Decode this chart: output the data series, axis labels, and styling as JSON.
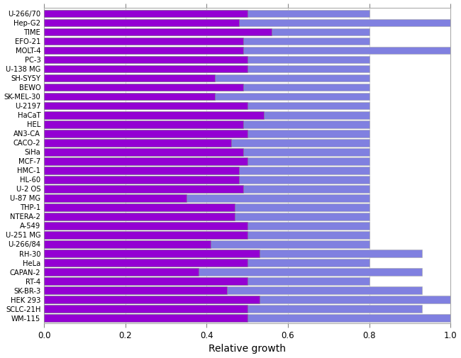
{
  "cell_lines": [
    "U-266/70",
    "Hep-G2",
    "TIME",
    "EFO-21",
    "MOLT-4",
    "PC-3",
    "U-138 MG",
    "SH-SY5Y",
    "BEWO",
    "SK-MEL-30",
    "U-2197",
    "HaCaT",
    "HEL",
    "AN3-CA",
    "CACO-2",
    "SiHa",
    "MCF-7",
    "HMC-1",
    "HL-60",
    "U-2 OS",
    "U-87 MG",
    "THP-1",
    "NTERA-2",
    "A-549",
    "U-251 MG",
    "U-266/84",
    "RH-30",
    "HeLa",
    "CAPAN-2",
    "RT-4",
    "SK-BR-3",
    "HEK 293",
    "SCLC-21H",
    "WM-115"
  ],
  "purple_values": [
    0.5,
    0.48,
    0.56,
    0.49,
    0.49,
    0.5,
    0.5,
    0.42,
    0.49,
    0.42,
    0.5,
    0.54,
    0.49,
    0.5,
    0.46,
    0.49,
    0.5,
    0.48,
    0.48,
    0.49,
    0.35,
    0.47,
    0.47,
    0.5,
    0.5,
    0.41,
    0.53,
    0.5,
    0.38,
    0.5,
    0.45,
    0.53,
    0.5,
    0.5
  ],
  "blue_values": [
    0.8,
    1.0,
    0.8,
    0.8,
    1.0,
    0.8,
    0.8,
    0.8,
    0.8,
    0.8,
    0.8,
    0.8,
    0.8,
    0.8,
    0.8,
    0.8,
    0.8,
    0.8,
    0.8,
    0.8,
    0.8,
    0.8,
    0.8,
    0.8,
    0.8,
    0.8,
    0.93,
    0.8,
    0.93,
    0.8,
    0.93,
    1.0,
    0.93,
    1.0
  ],
  "purple_color": "#9400D3",
  "blue_color": "#8080E0",
  "plot_bg": "#ffffff",
  "figure_bg": "#ffffff",
  "xlabel": "Relative growth",
  "xlim": [
    0.0,
    1.0
  ],
  "xticks": [
    0.0,
    0.2,
    0.4,
    0.6,
    0.8,
    1.0
  ],
  "bar_height": 0.82,
  "tick_fontsize": 8.5,
  "label_fontsize": 10,
  "ytick_fontsize": 7.2
}
